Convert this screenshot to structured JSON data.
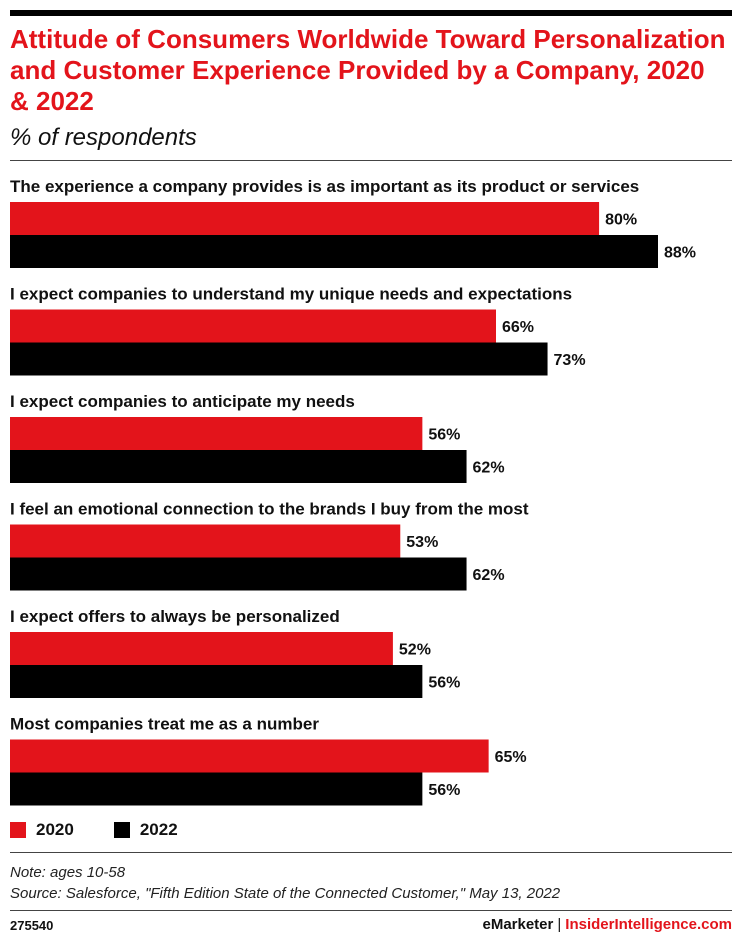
{
  "header": {
    "title": "Attitude of Consumers Worldwide Toward Personalization and Customer Experience Provided by a Company, 2020 & 2022",
    "subtitle": "% of respondents"
  },
  "chart_data": {
    "type": "bar",
    "orientation": "horizontal",
    "categories": [
      "The experience a company provides is as important as its product or services",
      "I expect companies to understand my unique needs and expectations",
      "I expect companies to anticipate my needs",
      "I feel an emotional connection to the brands I buy from the most",
      "I expect offers to always be personalized",
      "Most companies treat me as a number"
    ],
    "series": [
      {
        "name": "2020",
        "color": "#e3141b",
        "values": [
          80,
          66,
          56,
          53,
          52,
          65
        ],
        "labels": [
          "80%",
          "66%",
          "56%",
          "53%",
          "52%",
          "65%"
        ]
      },
      {
        "name": "2022",
        "color": "#000000",
        "values": [
          88,
          73,
          62,
          62,
          56,
          56
        ],
        "labels": [
          "88%",
          "73%",
          "62%",
          "62%",
          "56%",
          "56%"
        ]
      }
    ],
    "xlim": [
      0,
      88
    ],
    "grid": false,
    "legend": "bottom-left",
    "unit": "%"
  },
  "legend": {
    "items": [
      {
        "label": "2020",
        "color": "#e3141b"
      },
      {
        "label": "2022",
        "color": "#000000"
      }
    ]
  },
  "footer": {
    "note": "Note: ages 10-58",
    "source": "Source: Salesforce, \"Fifth Edition State of the Connected Customer,\" May 13, 2022",
    "chart_id": "275540",
    "brand": "eMarketer",
    "separator": "|",
    "brand2": "InsiderIntelligence.com"
  }
}
